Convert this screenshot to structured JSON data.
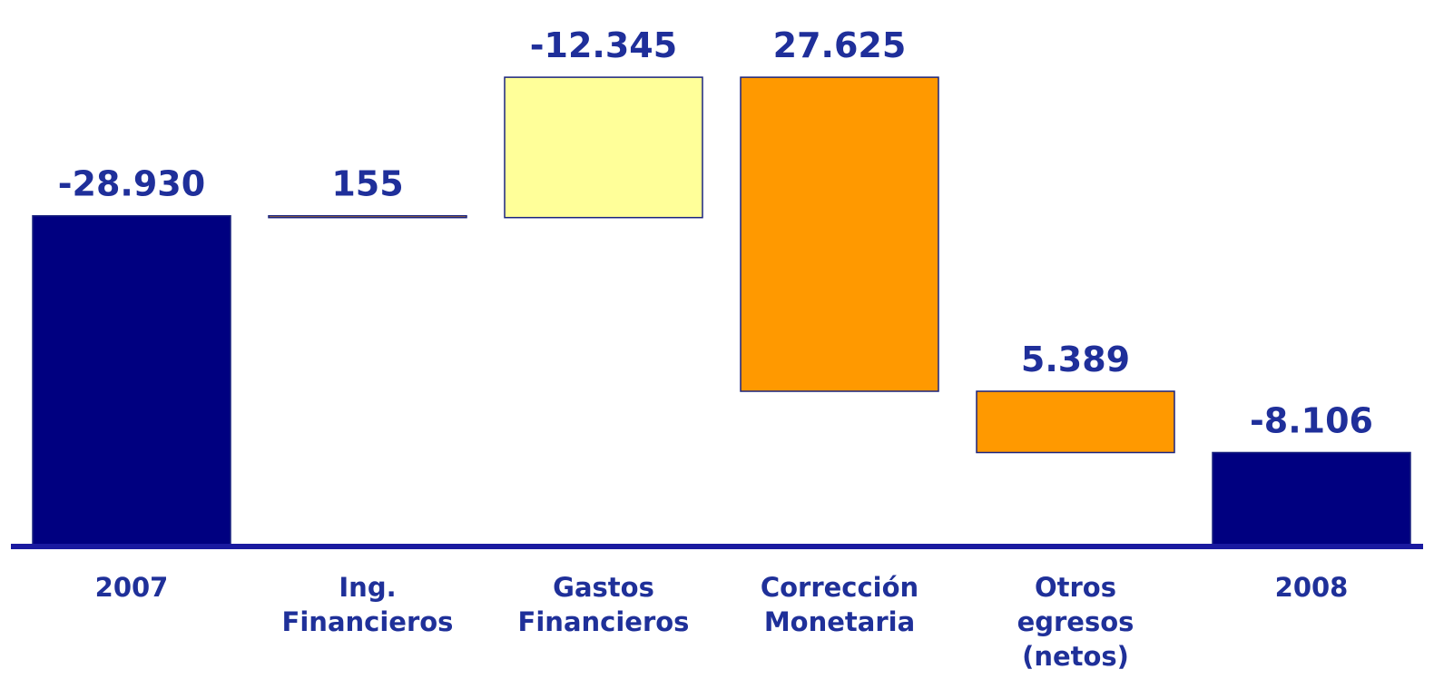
{
  "chart_data": {
    "type": "waterfall",
    "categories": [
      "2007",
      "Ing. Financieros",
      "Gastos Financieros",
      "Corrección Monetaria",
      "Otros egresos (netos)",
      "2008"
    ],
    "values": [
      -28930,
      155,
      -12345,
      27625,
      5389,
      -8106
    ],
    "value_labels": [
      "-28.930",
      "155",
      "-12.345",
      "27.625",
      "5.389",
      "-8.106"
    ],
    "colors": [
      "#000080",
      "#ff9900",
      "#ffff99",
      "#ff9900",
      "#ff9900",
      "#000080"
    ],
    "ylim": [
      0,
      -46000
    ]
  }
}
